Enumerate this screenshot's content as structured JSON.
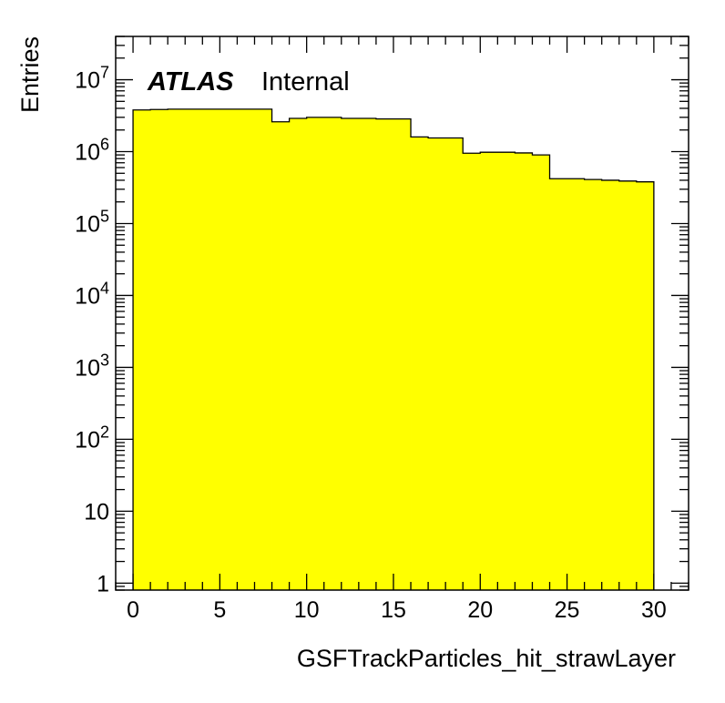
{
  "chart_data": {
    "type": "histogram",
    "xlabel": "GSFTrackParticles_hit_strawLayer",
    "ylabel": "Entries",
    "y_scale": "log",
    "xlim": [
      -1,
      32
    ],
    "ylim": [
      0.8,
      40000000
    ],
    "bin_width": 1,
    "bin_low_edges": [
      0,
      1,
      2,
      3,
      4,
      5,
      6,
      7,
      8,
      9,
      10,
      11,
      12,
      13,
      14,
      15,
      16,
      17,
      18,
      19,
      20,
      21,
      22,
      23,
      24,
      25,
      26,
      27,
      28,
      29
    ],
    "values": [
      3800000,
      3850000,
      3900000,
      3900000,
      3900000,
      3900000,
      3900000,
      3900000,
      2600000,
      2900000,
      3000000,
      3000000,
      2900000,
      2900000,
      2850000,
      2850000,
      1600000,
      1550000,
      1550000,
      950000,
      980000,
      980000,
      960000,
      900000,
      420000,
      420000,
      410000,
      400000,
      390000,
      380000
    ],
    "fill_color": "#ffff00",
    "x_ticks": [
      "0",
      "5",
      "10",
      "15",
      "20",
      "25",
      "30"
    ],
    "x_tick_values": [
      0,
      5,
      10,
      15,
      20,
      25,
      30
    ],
    "y_tick_labels": [
      {
        "base": "1",
        "exp": ""
      },
      {
        "base": "10",
        "exp": ""
      },
      {
        "base": "10",
        "exp": "2"
      },
      {
        "base": "10",
        "exp": "3"
      },
      {
        "base": "10",
        "exp": "4"
      },
      {
        "base": "10",
        "exp": "5"
      },
      {
        "base": "10",
        "exp": "6"
      },
      {
        "base": "10",
        "exp": "7"
      }
    ],
    "y_tick_values": [
      1,
      10,
      100,
      1000,
      10000,
      100000,
      1000000,
      10000000
    ],
    "annotation": {
      "bold": "ATLAS",
      "normal": "Internal"
    }
  }
}
